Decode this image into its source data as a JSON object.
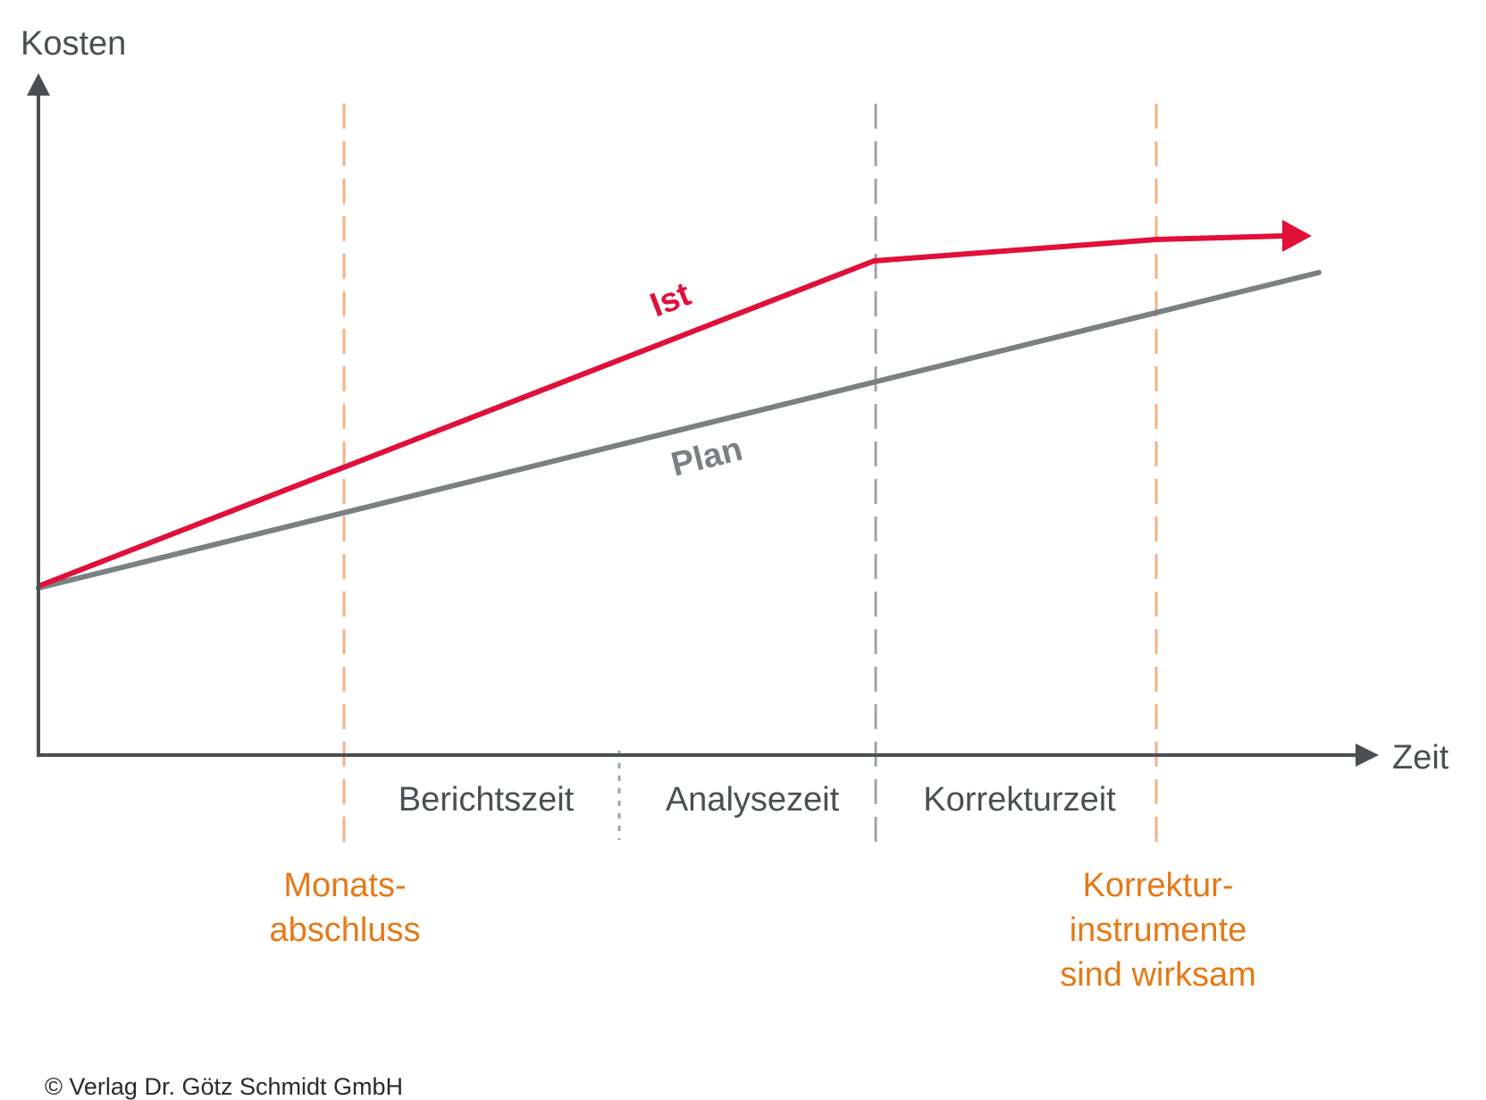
{
  "axes": {
    "y_label": "Kosten",
    "x_label": "Zeit"
  },
  "series": {
    "ist": {
      "label": "Ist",
      "color": "#e0103a"
    },
    "plan": {
      "label": "Plan",
      "color": "#7b8182"
    }
  },
  "phases": [
    "Berichtszeit",
    "Analysezeit",
    "Korrekturzeit"
  ],
  "markers": {
    "monatsabschluss": [
      "Monats-",
      "abschluss"
    ],
    "korrektur": [
      "Korrektur-",
      "instrumente",
      "sind wirksam"
    ]
  },
  "colors": {
    "axis": "#4a5052",
    "marker_orange": "#f4b183",
    "marker_text_orange": "#e47a17",
    "marker_gray": "#a0a4a6",
    "phase_divider": "#9fa3a5",
    "text_dark": "#4a5052"
  },
  "footer": {
    "copyright": "© Verlag Dr. Götz Schmidt GmbH"
  }
}
